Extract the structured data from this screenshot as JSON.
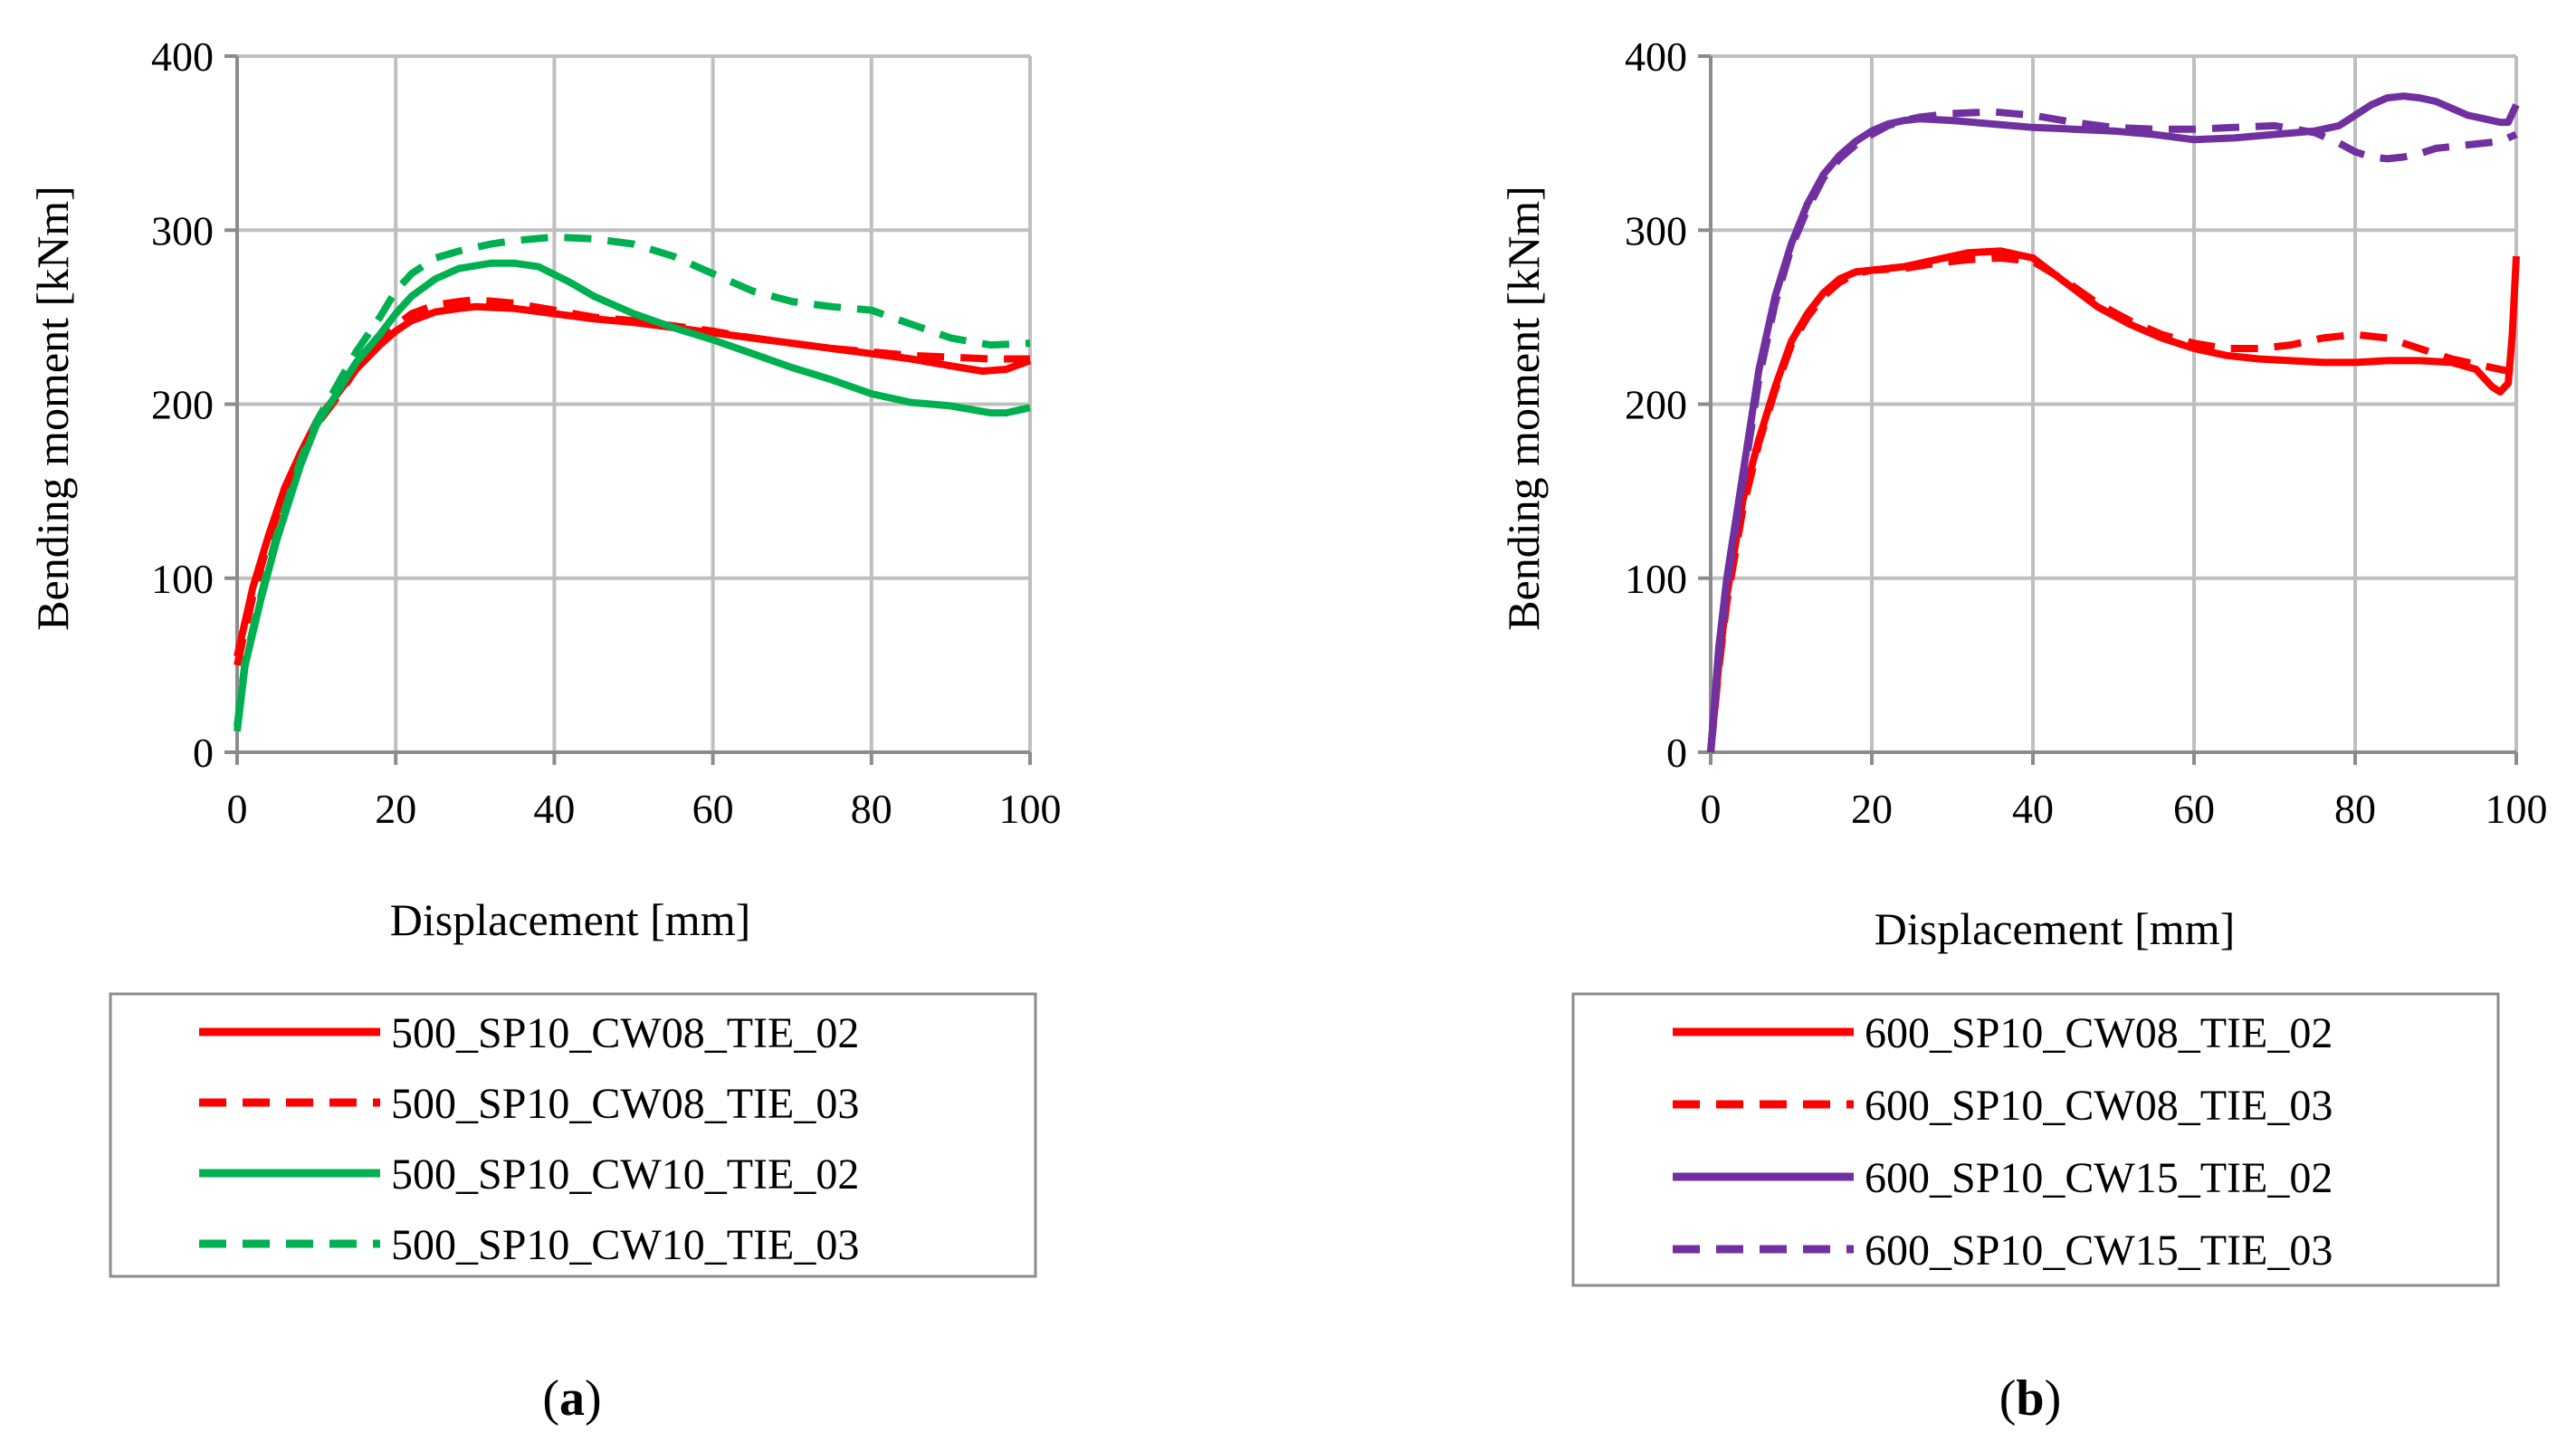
{
  "chart_data": [
    {
      "type": "line",
      "panel_label": "a",
      "xlabel": "Displacement [mm]",
      "ylabel": "Bending moment [kNm]",
      "xlim": [
        0,
        100
      ],
      "ylim": [
        0,
        400
      ],
      "xticks": [
        0,
        20,
        40,
        60,
        80,
        100
      ],
      "yticks": [
        0,
        100,
        200,
        300,
        400
      ],
      "grid": true,
      "legend_position": "bottom",
      "series": [
        {
          "name": "500_SP10_CW08_TIE_02",
          "color": "#ff0000",
          "dash": "solid",
          "x": [
            0,
            2,
            4,
            6,
            8,
            10,
            12,
            15,
            18,
            20,
            22,
            25,
            28,
            30,
            35,
            40,
            45,
            50,
            55,
            60,
            65,
            70,
            75,
            80,
            85,
            90,
            94,
            97,
            100
          ],
          "y": [
            55,
            95,
            125,
            152,
            172,
            190,
            202,
            220,
            234,
            242,
            248,
            253,
            255,
            256,
            255,
            252,
            249,
            247,
            244,
            241,
            238,
            235,
            232,
            229,
            226,
            222,
            219,
            220,
            225
          ]
        },
        {
          "name": "500_SP10_CW08_TIE_03",
          "color": "#ff0000",
          "dash": "dashed",
          "x": [
            0,
            2,
            4,
            6,
            8,
            10,
            12,
            15,
            18,
            20,
            22,
            25,
            28,
            30,
            35,
            40,
            45,
            50,
            55,
            60,
            65,
            70,
            75,
            80,
            85,
            90,
            95,
            100
          ],
          "y": [
            50,
            90,
            122,
            150,
            170,
            188,
            200,
            220,
            236,
            245,
            252,
            257,
            259,
            260,
            258,
            254,
            250,
            248,
            245,
            242,
            238,
            235,
            232,
            230,
            228,
            227,
            226,
            226
          ]
        },
        {
          "name": "500_SP10_CW10_TIE_02",
          "color": "#00b050",
          "dash": "solid",
          "x": [
            0,
            1,
            3,
            5,
            8,
            10,
            12,
            15,
            18,
            20,
            22,
            25,
            28,
            32,
            35,
            38,
            42,
            45,
            50,
            55,
            60,
            65,
            70,
            75,
            80,
            85,
            90,
            95,
            97,
            100
          ],
          "y": [
            12,
            50,
            88,
            122,
            165,
            188,
            202,
            224,
            240,
            252,
            262,
            272,
            278,
            281,
            281,
            279,
            270,
            262,
            252,
            244,
            237,
            229,
            221,
            214,
            206,
            201,
            199,
            195,
            195,
            198
          ]
        },
        {
          "name": "500_SP10_CW10_TIE_03",
          "color": "#00b050",
          "dash": "dashed",
          "x": [
            0,
            1,
            3,
            5,
            8,
            10,
            12,
            15,
            18,
            20,
            22,
            25,
            28,
            32,
            35,
            40,
            45,
            50,
            55,
            60,
            65,
            70,
            75,
            80,
            85,
            90,
            95,
            100
          ],
          "y": [
            15,
            52,
            90,
            125,
            168,
            190,
            206,
            230,
            250,
            265,
            275,
            284,
            288,
            292,
            294,
            296,
            295,
            292,
            285,
            275,
            265,
            259,
            256,
            254,
            246,
            238,
            234,
            235
          ]
        }
      ]
    },
    {
      "type": "line",
      "panel_label": "b",
      "xlabel": "Displacement [mm]",
      "ylabel": "Bending moment [kNm]",
      "xlim": [
        0,
        100
      ],
      "ylim": [
        0,
        400
      ],
      "xticks": [
        0,
        20,
        40,
        60,
        80,
        100
      ],
      "yticks": [
        0,
        100,
        200,
        300,
        400
      ],
      "grid": true,
      "legend_position": "bottom",
      "series": [
        {
          "name": "600_SP10_CW08_TIE_02",
          "color": "#ff0000",
          "dash": "solid",
          "x": [
            0,
            1,
            2,
            4,
            6,
            8,
            10,
            12,
            14,
            16,
            18,
            20,
            24,
            28,
            32,
            36,
            40,
            44,
            48,
            52,
            56,
            60,
            64,
            68,
            72,
            76,
            80,
            84,
            88,
            92,
            95,
            97,
            98,
            99,
            99.5,
            100
          ],
          "y": [
            0,
            50,
            90,
            145,
            180,
            210,
            236,
            252,
            264,
            272,
            276,
            277,
            279,
            283,
            287,
            288,
            284,
            270,
            256,
            246,
            238,
            232,
            228,
            226,
            225,
            224,
            224,
            225,
            225,
            224,
            220,
            210,
            207,
            212,
            240,
            285
          ]
        },
        {
          "name": "600_SP10_CW08_TIE_03",
          "color": "#ff0000",
          "dash": "dashed",
          "x": [
            0,
            1,
            2,
            4,
            6,
            8,
            10,
            12,
            14,
            16,
            18,
            20,
            24,
            28,
            32,
            36,
            40,
            44,
            48,
            52,
            56,
            60,
            64,
            68,
            72,
            76,
            80,
            84,
            88,
            92,
            96,
            100
          ],
          "y": [
            0,
            48,
            86,
            140,
            178,
            208,
            234,
            250,
            262,
            270,
            275,
            277,
            278,
            281,
            283,
            284,
            282,
            271,
            258,
            248,
            240,
            235,
            232,
            232,
            234,
            238,
            240,
            238,
            232,
            226,
            222,
            218
          ]
        },
        {
          "name": "600_SP10_CW15_TIE_02",
          "color": "#7030a0",
          "dash": "solid",
          "x": [
            0,
            1,
            2,
            4,
            6,
            8,
            10,
            12,
            14,
            16,
            18,
            20,
            22,
            24,
            26,
            30,
            35,
            40,
            45,
            50,
            55,
            60,
            65,
            70,
            75,
            78,
            80,
            82,
            84,
            86,
            88,
            90,
            92,
            94,
            96,
            98,
            99,
            100
          ],
          "y": [
            0,
            60,
            100,
            160,
            220,
            262,
            292,
            315,
            332,
            343,
            351,
            357,
            361,
            363,
            364,
            363,
            361,
            359,
            358,
            357,
            355,
            352,
            353,
            355,
            357,
            360,
            366,
            372,
            376,
            377,
            376,
            374,
            370,
            366,
            364,
            362,
            362,
            372
          ]
        },
        {
          "name": "600_SP10_CW15_TIE_03",
          "color": "#7030a0",
          "dash": "dashed",
          "x": [
            0,
            1,
            2,
            4,
            6,
            8,
            10,
            12,
            14,
            16,
            18,
            20,
            22,
            24,
            26,
            30,
            35,
            40,
            45,
            50,
            55,
            60,
            65,
            70,
            75,
            78,
            80,
            82,
            84,
            86,
            88,
            90,
            92,
            94,
            96,
            98,
            100
          ],
          "y": [
            0,
            55,
            95,
            155,
            215,
            258,
            290,
            312,
            330,
            341,
            349,
            355,
            360,
            363,
            365,
            367,
            368,
            366,
            362,
            359,
            358,
            358,
            359,
            360,
            356,
            350,
            345,
            342,
            341,
            342,
            344,
            347,
            348,
            349,
            350,
            351,
            355
          ]
        }
      ]
    }
  ]
}
